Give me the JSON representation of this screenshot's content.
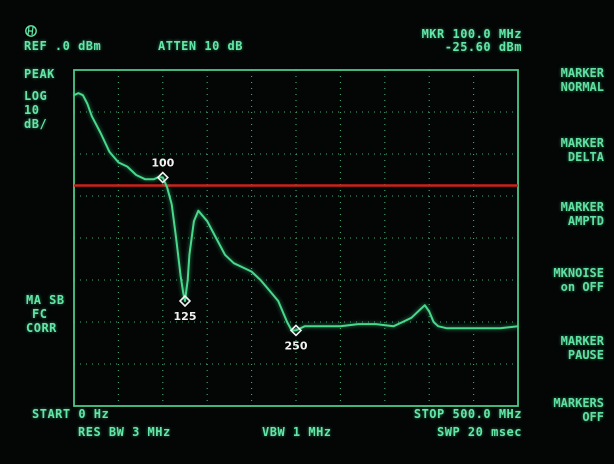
{
  "header": {
    "ref_level": "REF .0 dBm",
    "attenuation": "ATTEN 10 dB",
    "marker_freq": "MKR 100.0 MHz",
    "marker_level": "-25.60 dBm"
  },
  "left_panel": {
    "detector": "PEAK",
    "scale_line1": "LOG",
    "scale_line2": "10",
    "scale_line3": "dB/",
    "ma_sb": "MA SB",
    "fc": "FC",
    "corr": "CORR"
  },
  "footer": {
    "start": "START 0 Hz",
    "res_bw": "RES BW 3 MHz",
    "vbw": "VBW 1 MHz",
    "stop": "STOP 500.0 MHz",
    "sweep": "SWP 20 msec"
  },
  "softkeys": [
    {
      "line1": "MARKER",
      "line2": "NORMAL"
    },
    {
      "line1": "MARKER",
      "line2": "DELTA"
    },
    {
      "line1": "MARKER",
      "line2": "AMPTD"
    },
    {
      "line1": "MKNOISE",
      "line2": "on  OFF"
    },
    {
      "line1": "MARKER",
      "line2": "PAUSE"
    },
    {
      "line1": "MARKERS",
      "line2": "OFF"
    }
  ],
  "markers": [
    {
      "label": "100",
      "freq_mhz": 100,
      "level_dbm": -25.6
    },
    {
      "label": "125",
      "freq_mhz": 125,
      "level_dbm": -55
    },
    {
      "label": "250",
      "freq_mhz": 250,
      "level_dbm": -62
    }
  ],
  "colors": {
    "trace": "#48d98c",
    "graticule": "#49c98a",
    "limit_line": "#d0201a"
  },
  "chart_data": {
    "type": "line",
    "x_start_mhz": 0,
    "x_stop_mhz": 500,
    "ref_level_dbm": 0,
    "db_per_div": 10,
    "divisions_x": 10,
    "divisions_y": 8,
    "limit_line_dbm": -27.5,
    "trace": {
      "x": [
        0,
        5,
        10,
        15,
        20,
        30,
        40,
        50,
        60,
        70,
        80,
        90,
        95,
        100,
        105,
        110,
        115,
        120,
        123,
        125,
        128,
        130,
        135,
        140,
        150,
        160,
        170,
        180,
        190,
        200,
        210,
        220,
        230,
        240,
        245,
        250,
        260,
        280,
        300,
        320,
        340,
        360,
        370,
        380,
        390,
        395,
        400,
        405,
        410,
        420,
        440,
        460,
        480,
        500
      ],
      "y": [
        -6,
        -5.5,
        -6,
        -8,
        -11,
        -15,
        -19.5,
        -22,
        -23,
        -25,
        -26,
        -26,
        -25.5,
        -25.6,
        -28,
        -32,
        -40,
        -49,
        -53,
        -55,
        -50,
        -44,
        -36,
        -33.5,
        -36,
        -40,
        -44,
        -46,
        -47,
        -48,
        -50,
        -52.5,
        -55,
        -60,
        -62,
        -62,
        -61,
        -61,
        -61,
        -60.5,
        -60.5,
        -61,
        -60,
        -59,
        -57,
        -56,
        -57.5,
        -60,
        -61,
        -61.5,
        -61.5,
        -61.5,
        -61.5,
        -61
      ]
    }
  }
}
